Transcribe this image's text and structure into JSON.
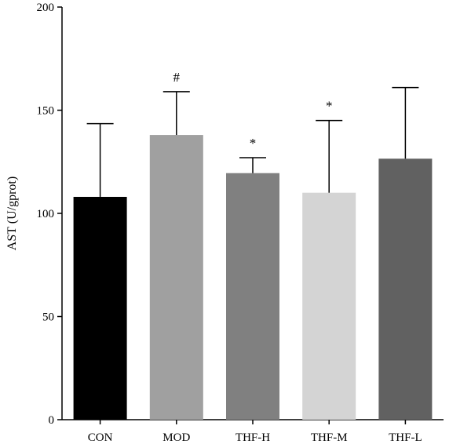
{
  "chart_data": {
    "type": "bar",
    "title": "",
    "xlabel": "",
    "ylabel": "AST (U/gprot)",
    "ylim": [
      0,
      200
    ],
    "yticks": [
      0,
      50,
      100,
      150,
      200
    ],
    "grid": false,
    "legend": "none",
    "error_bars": "upper",
    "categories": [
      "CON",
      "MOD",
      "THF-H",
      "THF-M",
      "THF-L"
    ],
    "values": [
      108,
      138,
      119.5,
      110,
      126.5
    ],
    "errors": [
      35.5,
      21,
      7.5,
      35,
      34.5
    ],
    "annotations": [
      "",
      "#",
      "*",
      "*",
      ""
    ],
    "colors": [
      "#000000",
      "#a0a0a0",
      "#808080",
      "#d4d4d4",
      "#616161"
    ]
  }
}
